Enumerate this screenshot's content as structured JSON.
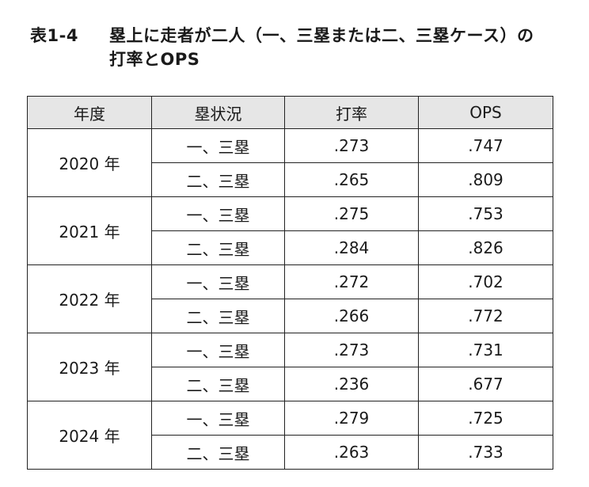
{
  "title": {
    "label": "表1-4",
    "line1": "塁上に走者が二人（一、三塁または二、三塁ケース）の",
    "line2": "打率とOPS"
  },
  "table": {
    "headers": [
      "年度",
      "塁状況",
      "打率",
      "OPS"
    ],
    "groups": [
      {
        "year": "2020 年",
        "rows": [
          {
            "situation": "一、三塁",
            "avg": ".273",
            "ops": ".747"
          },
          {
            "situation": "二、三塁",
            "avg": ".265",
            "ops": ".809"
          }
        ]
      },
      {
        "year": "2021 年",
        "rows": [
          {
            "situation": "一、三塁",
            "avg": ".275",
            "ops": ".753"
          },
          {
            "situation": "二、三塁",
            "avg": ".284",
            "ops": ".826"
          }
        ]
      },
      {
        "year": "2022 年",
        "rows": [
          {
            "situation": "一、三塁",
            "avg": ".272",
            "ops": ".702"
          },
          {
            "situation": "二、三塁",
            "avg": ".266",
            "ops": ".772"
          }
        ]
      },
      {
        "year": "2023 年",
        "rows": [
          {
            "situation": "一、三塁",
            "avg": ".273",
            "ops": ".731"
          },
          {
            "situation": "二、三塁",
            "avg": ".236",
            "ops": ".677"
          }
        ]
      },
      {
        "year": "2024 年",
        "rows": [
          {
            "situation": "一、三塁",
            "avg": ".279",
            "ops": ".725"
          },
          {
            "situation": "二、三塁",
            "avg": ".263",
            "ops": ".733"
          }
        ]
      }
    ]
  }
}
